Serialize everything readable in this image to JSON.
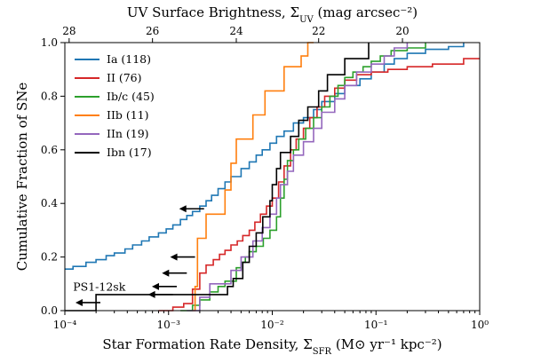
{
  "chart_data": {
    "type": "line",
    "step": true,
    "xscale": "log",
    "xlim": [
      0.0001,
      1
    ],
    "ylim": [
      0,
      1
    ],
    "xlabel": "Star Formation Rate Density, Σ",
    "xlabel_sub": "SFR",
    "xlabel_tail": " (M⊙ yr⁻¹ kpc⁻²)",
    "ylabel": "Cumulative Fraction of SNe",
    "top_axis": {
      "label": "UV Surface Brightness, Σ",
      "label_sub": "UV",
      "label_tail": " (mag arcsec⁻²)",
      "ticks": [
        {
          "label": "28",
          "x": 0.00011
        },
        {
          "label": "26",
          "x": 0.0007
        },
        {
          "label": "24",
          "x": 0.0045
        },
        {
          "label": "22",
          "x": 0.028
        },
        {
          "label": "20",
          "x": 0.18
        }
      ]
    },
    "x_ticks": [
      {
        "label": "10⁻⁴",
        "x": 0.0001
      },
      {
        "label": "10⁻³",
        "x": 0.001
      },
      {
        "label": "10⁻²",
        "x": 0.01
      },
      {
        "label": "10⁻¹",
        "x": 0.1
      },
      {
        "label": "10⁰",
        "x": 1
      }
    ],
    "y_ticks": [
      "0.0",
      "0.2",
      "0.4",
      "0.6",
      "0.8",
      "1.0"
    ],
    "legend_position": "upper-left",
    "series": [
      {
        "name": "Ia (118)",
        "color": "#1f77b4",
        "x": [
          0.0001,
          0.00012,
          0.00016,
          0.0002,
          0.00025,
          0.0003,
          0.00038,
          0.00045,
          0.00055,
          0.00065,
          0.0008,
          0.00095,
          0.0011,
          0.0013,
          0.0015,
          0.0017,
          0.002,
          0.0023,
          0.0026,
          0.003,
          0.0035,
          0.004,
          0.005,
          0.006,
          0.007,
          0.008,
          0.0095,
          0.011,
          0.013,
          0.016,
          0.02,
          0.025,
          0.03,
          0.04,
          0.05,
          0.07,
          0.09,
          0.12,
          0.15,
          0.2,
          0.3,
          0.5,
          0.7
        ],
        "y": [
          0.155,
          0.165,
          0.18,
          0.19,
          0.205,
          0.215,
          0.23,
          0.245,
          0.26,
          0.275,
          0.29,
          0.305,
          0.32,
          0.34,
          0.355,
          0.37,
          0.39,
          0.41,
          0.43,
          0.455,
          0.48,
          0.5,
          0.53,
          0.555,
          0.58,
          0.6,
          0.625,
          0.65,
          0.67,
          0.7,
          0.72,
          0.75,
          0.78,
          0.81,
          0.84,
          0.865,
          0.89,
          0.92,
          0.94,
          0.96,
          0.975,
          0.985,
          1.0
        ]
      },
      {
        "name": "II (76)",
        "color": "#d62728",
        "x": [
          0.0008,
          0.0011,
          0.0014,
          0.0017,
          0.002,
          0.0023,
          0.0027,
          0.0031,
          0.0035,
          0.004,
          0.0046,
          0.0052,
          0.006,
          0.0068,
          0.0077,
          0.0088,
          0.01,
          0.0115,
          0.013,
          0.015,
          0.017,
          0.02,
          0.023,
          0.027,
          0.032,
          0.04,
          0.05,
          0.065,
          0.09,
          0.13,
          0.2,
          0.35,
          0.7,
          1.0
        ],
        "y": [
          0.0,
          0.013,
          0.026,
          0.08,
          0.14,
          0.17,
          0.19,
          0.21,
          0.225,
          0.245,
          0.26,
          0.28,
          0.3,
          0.33,
          0.36,
          0.39,
          0.42,
          0.48,
          0.54,
          0.6,
          0.64,
          0.68,
          0.72,
          0.76,
          0.8,
          0.83,
          0.86,
          0.88,
          0.89,
          0.9,
          0.91,
          0.92,
          0.94,
          0.94
        ]
      },
      {
        "name": "Ib/c (45)",
        "color": "#2ca02c",
        "x": [
          0.0013,
          0.0017,
          0.002,
          0.0025,
          0.003,
          0.0035,
          0.0045,
          0.005,
          0.0055,
          0.006,
          0.007,
          0.0082,
          0.0095,
          0.011,
          0.012,
          0.013,
          0.014,
          0.016,
          0.018,
          0.021,
          0.025,
          0.03,
          0.036,
          0.043,
          0.05,
          0.06,
          0.075,
          0.09,
          0.11,
          0.14,
          0.2,
          0.3
        ],
        "y": [
          0.0,
          0.02,
          0.04,
          0.07,
          0.09,
          0.11,
          0.16,
          0.18,
          0.2,
          0.22,
          0.24,
          0.27,
          0.3,
          0.35,
          0.42,
          0.49,
          0.56,
          0.6,
          0.64,
          0.68,
          0.72,
          0.76,
          0.8,
          0.84,
          0.87,
          0.89,
          0.91,
          0.93,
          0.95,
          0.97,
          0.98,
          1.0
        ]
      },
      {
        "name": "IIb (11)",
        "color": "#ff7f0e",
        "x": [
          0.0017,
          0.0018,
          0.0019,
          0.0023,
          0.0027,
          0.0035,
          0.004,
          0.0045,
          0.0055,
          0.0065,
          0.0085,
          0.011,
          0.013,
          0.016,
          0.019,
          0.022,
          0.025
        ],
        "y": [
          0.0,
          0.09,
          0.27,
          0.36,
          0.36,
          0.45,
          0.55,
          0.64,
          0.64,
          0.73,
          0.82,
          0.82,
          0.91,
          0.91,
          0.95,
          1.0,
          1.0
        ]
      },
      {
        "name": "IIn (19)",
        "color": "#9467bd",
        "x": [
          0.0015,
          0.002,
          0.0025,
          0.004,
          0.005,
          0.0065,
          0.008,
          0.0095,
          0.011,
          0.012,
          0.014,
          0.016,
          0.02,
          0.025,
          0.03,
          0.04,
          0.05,
          0.065,
          0.09,
          0.12,
          0.15,
          0.2
        ],
        "y": [
          0.0,
          0.05,
          0.1,
          0.15,
          0.2,
          0.26,
          0.31,
          0.36,
          0.42,
          0.47,
          0.52,
          0.58,
          0.63,
          0.68,
          0.74,
          0.79,
          0.84,
          0.89,
          0.92,
          0.95,
          0.98,
          1.0
        ]
      },
      {
        "name": "Ibn (17)",
        "color": "#000000",
        "x": [
          0.0001,
          0.0002,
          0.0004,
          0.0037,
          0.0042,
          0.0052,
          0.006,
          0.007,
          0.0081,
          0.0095,
          0.01,
          0.011,
          0.012,
          0.015,
          0.018,
          0.022,
          0.028,
          0.034,
          0.04,
          0.05,
          0.06,
          0.075,
          0.085
        ],
        "y": [
          0.0,
          0.06,
          0.06,
          0.09,
          0.12,
          0.18,
          0.24,
          0.29,
          0.35,
          0.41,
          0.47,
          0.53,
          0.59,
          0.65,
          0.71,
          0.76,
          0.82,
          0.88,
          0.88,
          0.94,
          0.94,
          0.94,
          1.0
        ]
      }
    ],
    "upper_limits": [
      {
        "x": 0.00022,
        "y": 0.03
      },
      {
        "x": 0.0011,
        "y": 0.06
      },
      {
        "x": 0.0012,
        "y": 0.09
      },
      {
        "x": 0.0015,
        "y": 0.14
      },
      {
        "x": 0.0018,
        "y": 0.2
      },
      {
        "x": 0.0022,
        "y": 0.38
      }
    ],
    "annotations": [
      {
        "text": "PS1-12sk",
        "x": 0.00012,
        "y": 0.075
      }
    ]
  }
}
